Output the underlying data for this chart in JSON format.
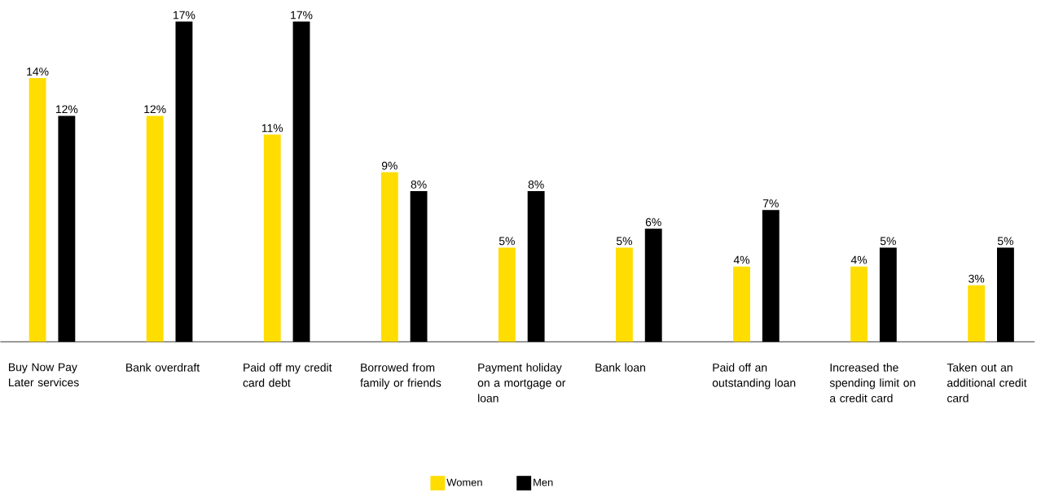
{
  "chart_data": {
    "type": "bar",
    "categories": [
      "Buy Now Pay Later services",
      "Bank overdraft",
      "Paid off my credit card debt",
      "Borrowed from family or friends",
      "Payment holiday on a mortgage or loan",
      "Bank loan",
      "Paid off an outstanding loan",
      "Increased the spending limit on a credit card",
      "Taken out an additional credit card"
    ],
    "series": [
      {
        "name": "Women",
        "color": "#ffdd00",
        "values": [
          14,
          12,
          11,
          9,
          5,
          5,
          4,
          4,
          3
        ],
        "value_labels": [
          "14%",
          "12%",
          "11%",
          "9%",
          "5%",
          "5%",
          "4%",
          "4%",
          "3%"
        ]
      },
      {
        "name": "Men",
        "color": "#000000",
        "values": [
          12,
          17,
          17,
          8,
          8,
          6,
          7,
          5,
          5
        ],
        "value_labels": [
          "12%",
          "17%",
          "17%",
          "8%",
          "8%",
          "6%",
          "7%",
          "5%",
          "5%"
        ]
      }
    ],
    "legend": "bottom"
  }
}
